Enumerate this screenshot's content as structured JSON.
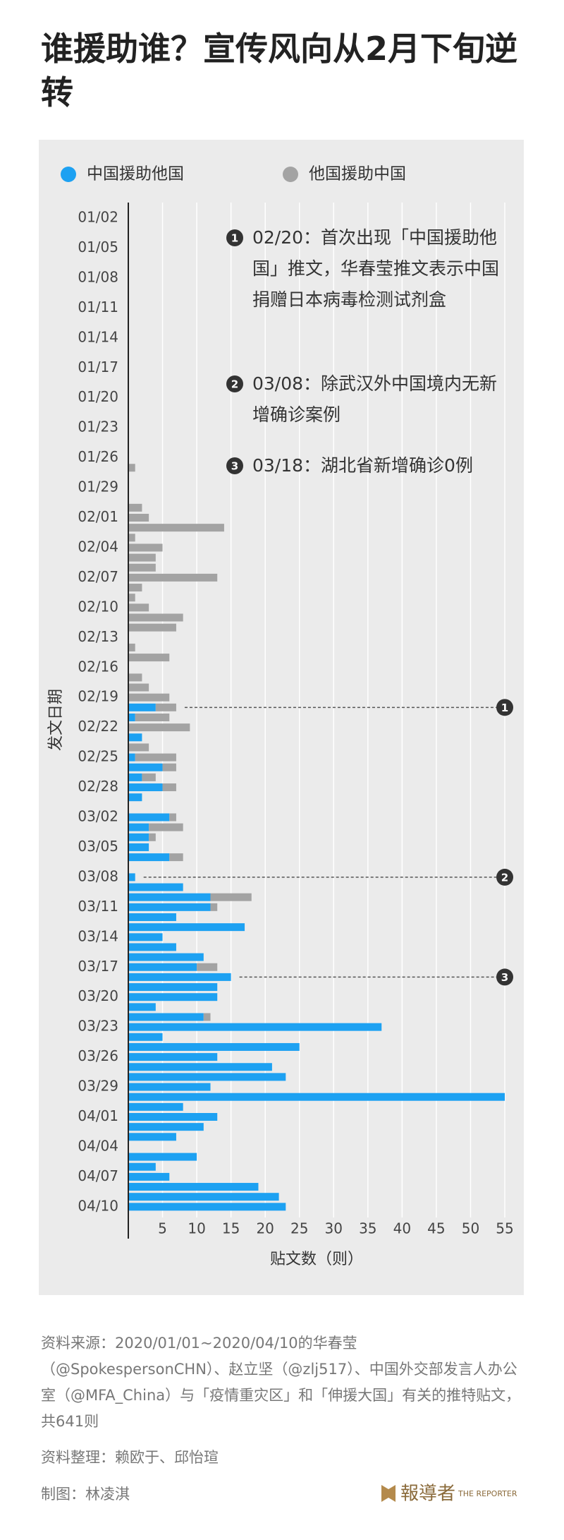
{
  "chart_data": {
    "type": "bar",
    "orientation": "horizontal",
    "stacked": true,
    "title": "谁援助谁？宣传风向从2月下旬逆转",
    "x_label": "贴文数（则）",
    "y_label": "发文日期",
    "categories": [
      "01/02",
      null,
      null,
      "01/05",
      null,
      null,
      "01/08",
      null,
      null,
      "01/11",
      null,
      null,
      "01/14",
      null,
      null,
      "01/17",
      null,
      null,
      "01/20",
      null,
      null,
      "01/23",
      null,
      null,
      "01/26",
      null,
      null,
      "01/29",
      null,
      null,
      "02/01",
      null,
      null,
      "02/04",
      null,
      null,
      "02/07",
      null,
      null,
      "02/10",
      null,
      null,
      "02/13",
      null,
      null,
      "02/16",
      null,
      null,
      "02/19",
      null,
      null,
      "02/22",
      null,
      null,
      "02/25",
      null,
      null,
      "02/28",
      null,
      null,
      "03/02",
      null,
      null,
      "03/05",
      null,
      null,
      "03/08",
      null,
      null,
      "03/11",
      null,
      null,
      "03/14",
      null,
      null,
      "03/17",
      null,
      null,
      "03/20",
      null,
      null,
      "03/23",
      null,
      null,
      "03/26",
      null,
      null,
      "03/29",
      null,
      null,
      "04/01",
      null,
      null,
      "04/04",
      null,
      null,
      "04/07",
      null,
      null,
      "04/10"
    ],
    "series": [
      {
        "name": "中国援助他国",
        "color": "#1da1f2",
        "values": [
          0,
          0,
          0,
          0,
          0,
          0,
          0,
          0,
          0,
          0,
          0,
          0,
          0,
          0,
          0,
          0,
          0,
          0,
          0,
          0,
          0,
          0,
          0,
          0,
          0,
          0,
          0,
          0,
          0,
          0,
          0,
          0,
          0,
          0,
          0,
          0,
          0,
          0,
          0,
          0,
          0,
          0,
          0,
          0,
          0,
          0,
          0,
          0,
          0,
          4,
          1,
          0,
          2,
          0,
          1,
          5,
          2,
          5,
          2,
          0,
          6,
          3,
          3,
          3,
          6,
          0,
          1,
          8,
          12,
          12,
          7,
          17,
          5,
          7,
          11,
          10,
          15,
          13,
          13,
          4,
          11,
          37,
          5,
          25,
          13,
          21,
          23,
          12,
          55,
          8,
          13,
          11,
          7,
          0,
          10,
          4,
          6,
          19,
          22,
          23
        ]
      },
      {
        "name": "他国援助中国",
        "color": "#a3a3a3",
        "values": [
          0,
          0,
          0,
          0,
          0,
          0,
          0,
          0,
          0,
          0,
          0,
          0,
          0,
          0,
          0,
          0,
          0,
          0,
          0,
          0,
          0,
          0,
          0,
          0,
          0,
          1,
          0,
          0,
          0,
          2,
          3,
          14,
          1,
          5,
          4,
          4,
          13,
          2,
          1,
          3,
          8,
          7,
          0,
          1,
          6,
          0,
          2,
          3,
          6,
          3,
          5,
          9,
          0,
          3,
          6,
          2,
          2,
          2,
          0,
          0,
          1,
          5,
          1,
          0,
          2,
          0,
          0,
          0,
          6,
          1,
          0,
          0,
          0,
          0,
          0,
          3,
          0,
          0,
          0,
          0,
          1,
          0,
          0,
          0,
          0,
          0,
          0,
          0,
          0,
          0,
          0,
          0,
          0,
          0,
          0,
          0,
          0,
          0,
          0,
          0
        ]
      }
    ],
    "xlim": [
      0,
      55
    ],
    "xticks": [
      5,
      10,
      15,
      20,
      25,
      30,
      35,
      40,
      45,
      50,
      55
    ],
    "grid": true,
    "annotations": [
      {
        "marker": "1",
        "text": "02/20：首次出现「中国援助他国」推文，华春莹推文表示中国捐赠日本病毒检测试剂盒"
      },
      {
        "marker": "2",
        "text": "03/08：除武汉外中国境内无新增确诊案例"
      },
      {
        "marker": "3",
        "text": "03/18：湖北省新增确诊0例"
      }
    ]
  },
  "footer": {
    "source": "资料来源：2020/01/01~2020/04/10的华春莹（@SpokespersonCHN）、赵立坚（@zlj517）、中国外交部发言人办公室（@MFA_China）与「疫情重灾区」和「伸援大国」有关的推特贴文，共641则",
    "compiled": "资料整理：赖欧于、邱怡瑄",
    "graphic": "制图：林凌淇",
    "logo": "報導者",
    "logo_en": "THE REPORTER"
  }
}
